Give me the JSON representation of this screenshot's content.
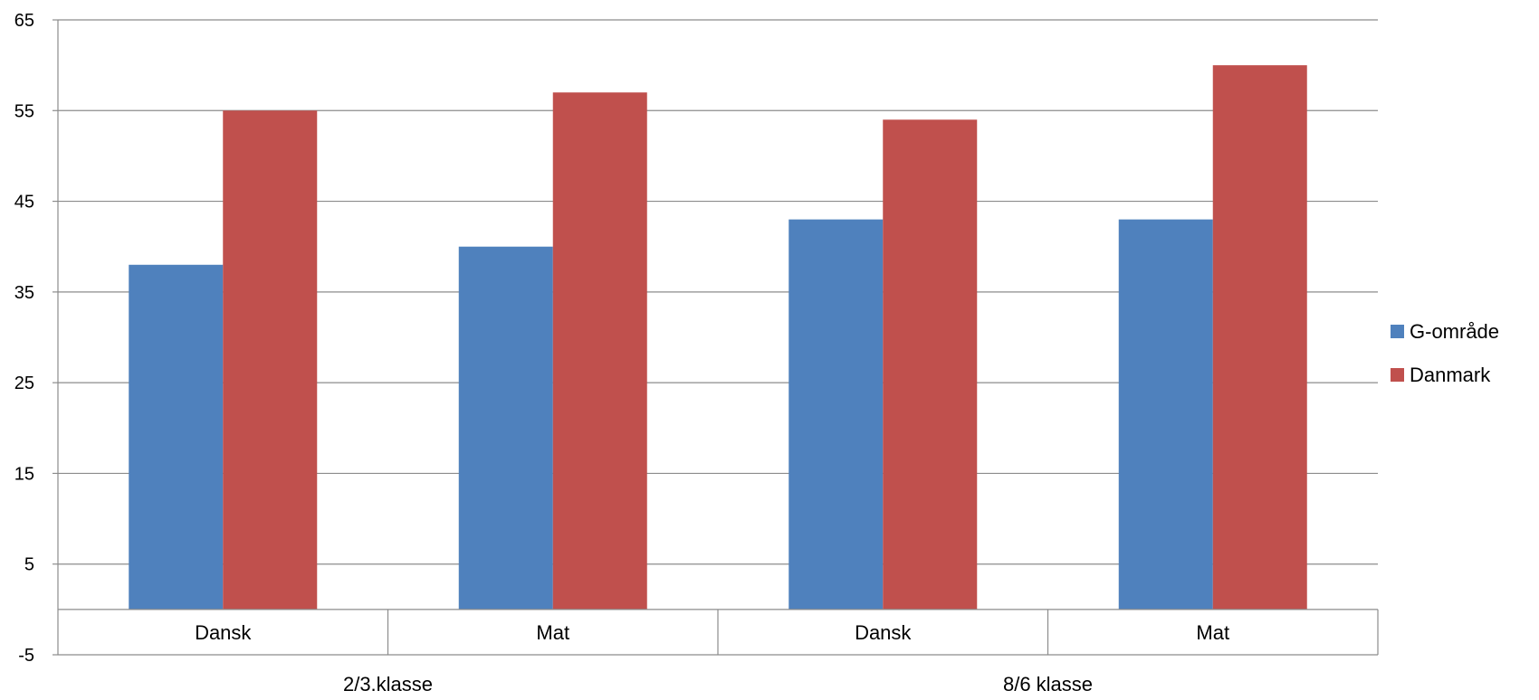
{
  "chart_data": {
    "type": "bar",
    "title": "",
    "xlabel": "",
    "ylabel": "",
    "ylim": [
      -5,
      65
    ],
    "yticks": [
      -5,
      5,
      15,
      25,
      35,
      45,
      55,
      65
    ],
    "grid": true,
    "legend_position": "right",
    "groups": [
      {
        "label": "2/3.klasse",
        "categories": [
          "Dansk",
          "Mat"
        ]
      },
      {
        "label": "8/6 klasse",
        "categories": [
          "Dansk",
          "Mat"
        ]
      }
    ],
    "categories": [
      "Dansk",
      "Mat",
      "Dansk",
      "Mat"
    ],
    "series": [
      {
        "name": "G-område",
        "color": "#4F81BD",
        "values": [
          38,
          40,
          43,
          43
        ]
      },
      {
        "name": "Danmark",
        "color": "#C0504D",
        "values": [
          55,
          57,
          54,
          60
        ]
      }
    ]
  }
}
